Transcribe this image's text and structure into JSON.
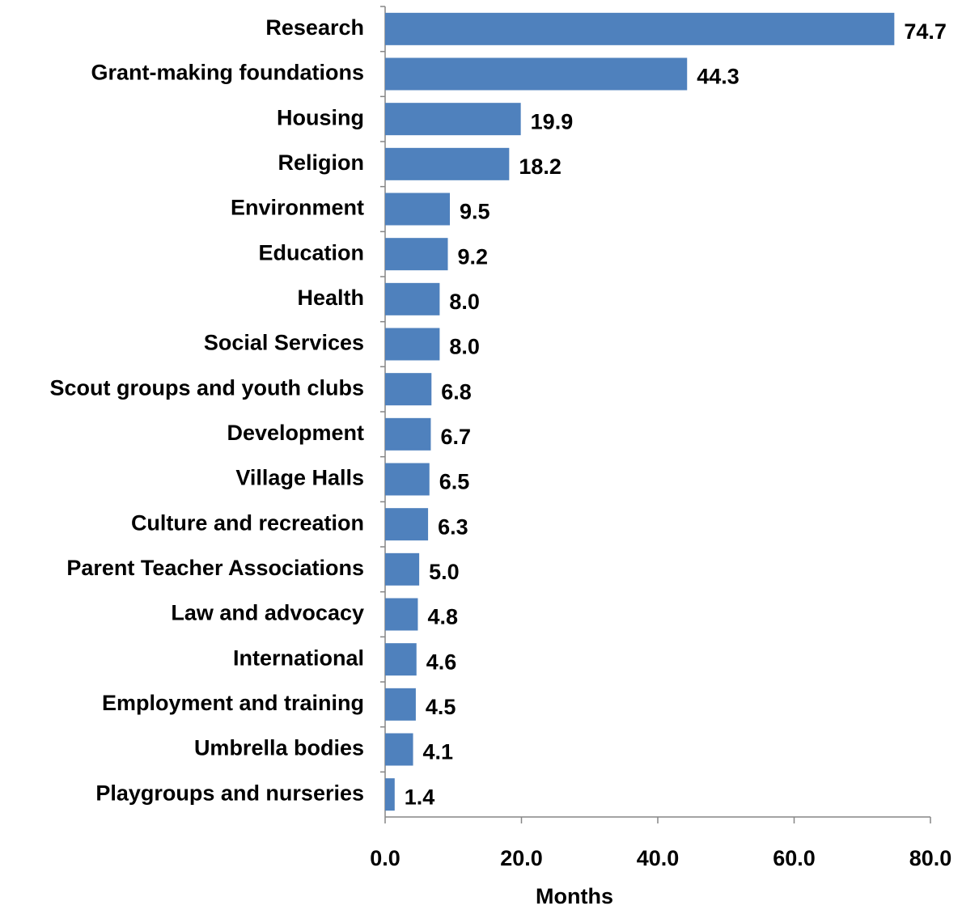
{
  "chart_data": {
    "type": "bar",
    "orientation": "horizontal",
    "categories": [
      "Research",
      "Grant-making foundations",
      "Housing",
      "Religion",
      "Environment",
      "Education",
      "Health",
      "Social Services",
      "Scout groups and youth clubs",
      "Development",
      "Village Halls",
      "Culture and recreation",
      "Parent Teacher Associations",
      "Law and advocacy",
      "International",
      "Employment and training",
      "Umbrella bodies",
      "Playgroups and nurseries"
    ],
    "values": [
      74.7,
      44.3,
      19.9,
      18.2,
      9.5,
      9.2,
      8.0,
      8.0,
      6.8,
      6.7,
      6.5,
      6.3,
      5.0,
      4.8,
      4.6,
      4.5,
      4.1,
      1.4
    ],
    "value_labels": [
      "74.7",
      "44.3",
      "19.9",
      "18.2",
      "9.5",
      "9.2",
      "8.0",
      "8.0",
      "6.8",
      "6.7",
      "6.5",
      "6.3",
      "5.0",
      "4.8",
      "4.6",
      "4.5",
      "4.1",
      "1.4"
    ],
    "color": "#4f81bd",
    "xlabel": "Months",
    "xlim": [
      0,
      80
    ],
    "xticks": [
      {
        "value": 0,
        "label": "0.0"
      },
      {
        "value": 20,
        "label": "20.0"
      },
      {
        "value": 40,
        "label": "40.0"
      },
      {
        "value": 60,
        "label": "60.0"
      },
      {
        "value": 80,
        "label": "80.0"
      }
    ],
    "grid": false
  }
}
